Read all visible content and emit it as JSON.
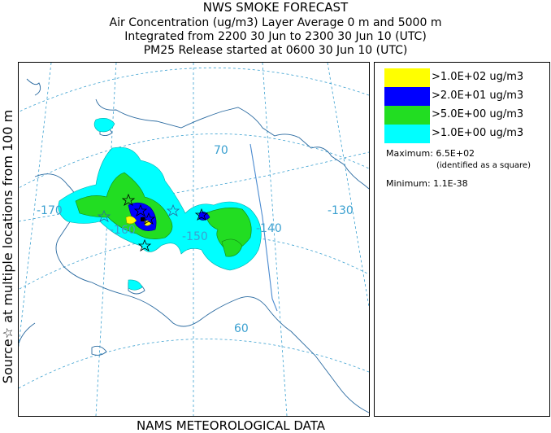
{
  "title": {
    "line1": "NWS SMOKE FORECAST",
    "line2": "Air Concentration (ug/m3) Layer Average    0 m and  5000 m",
    "line3": "Integrated from 2200 30 Jun to 2300 30 Jun 10 (UTC)",
    "line4": "PM25 Release started at 0600 30 Jun 10 (UTC)"
  },
  "side_label": "Source☆  at multiple locations  from  100 m",
  "footer": "NAMS METEOROLOGICAL DATA",
  "map": {
    "graticule_labels": [
      "-170",
      "-160",
      "-150",
      "-140",
      "-130",
      "70",
      "60"
    ],
    "graticule_color": "#3aa0d0",
    "land_outline_color": "#2a6aa0",
    "border_color": "#4a8ad0"
  },
  "legend": {
    "items": [
      {
        "label": ">1.0E+02 ug/m3",
        "color": "#ffff00"
      },
      {
        "label": ">2.0E+01 ug/m3",
        "color": "#0000ff"
      },
      {
        "label": ">5.0E+00 ug/m3",
        "color": "#22dd22"
      },
      {
        "label": ">1.0E+00 ug/m3",
        "color": "#00ffff"
      }
    ],
    "maximum_label": "Maximum: 6.5E+02",
    "maximum_note": "(identified as a square)",
    "minimum_label": "Minimum: 1.1E-38"
  }
}
